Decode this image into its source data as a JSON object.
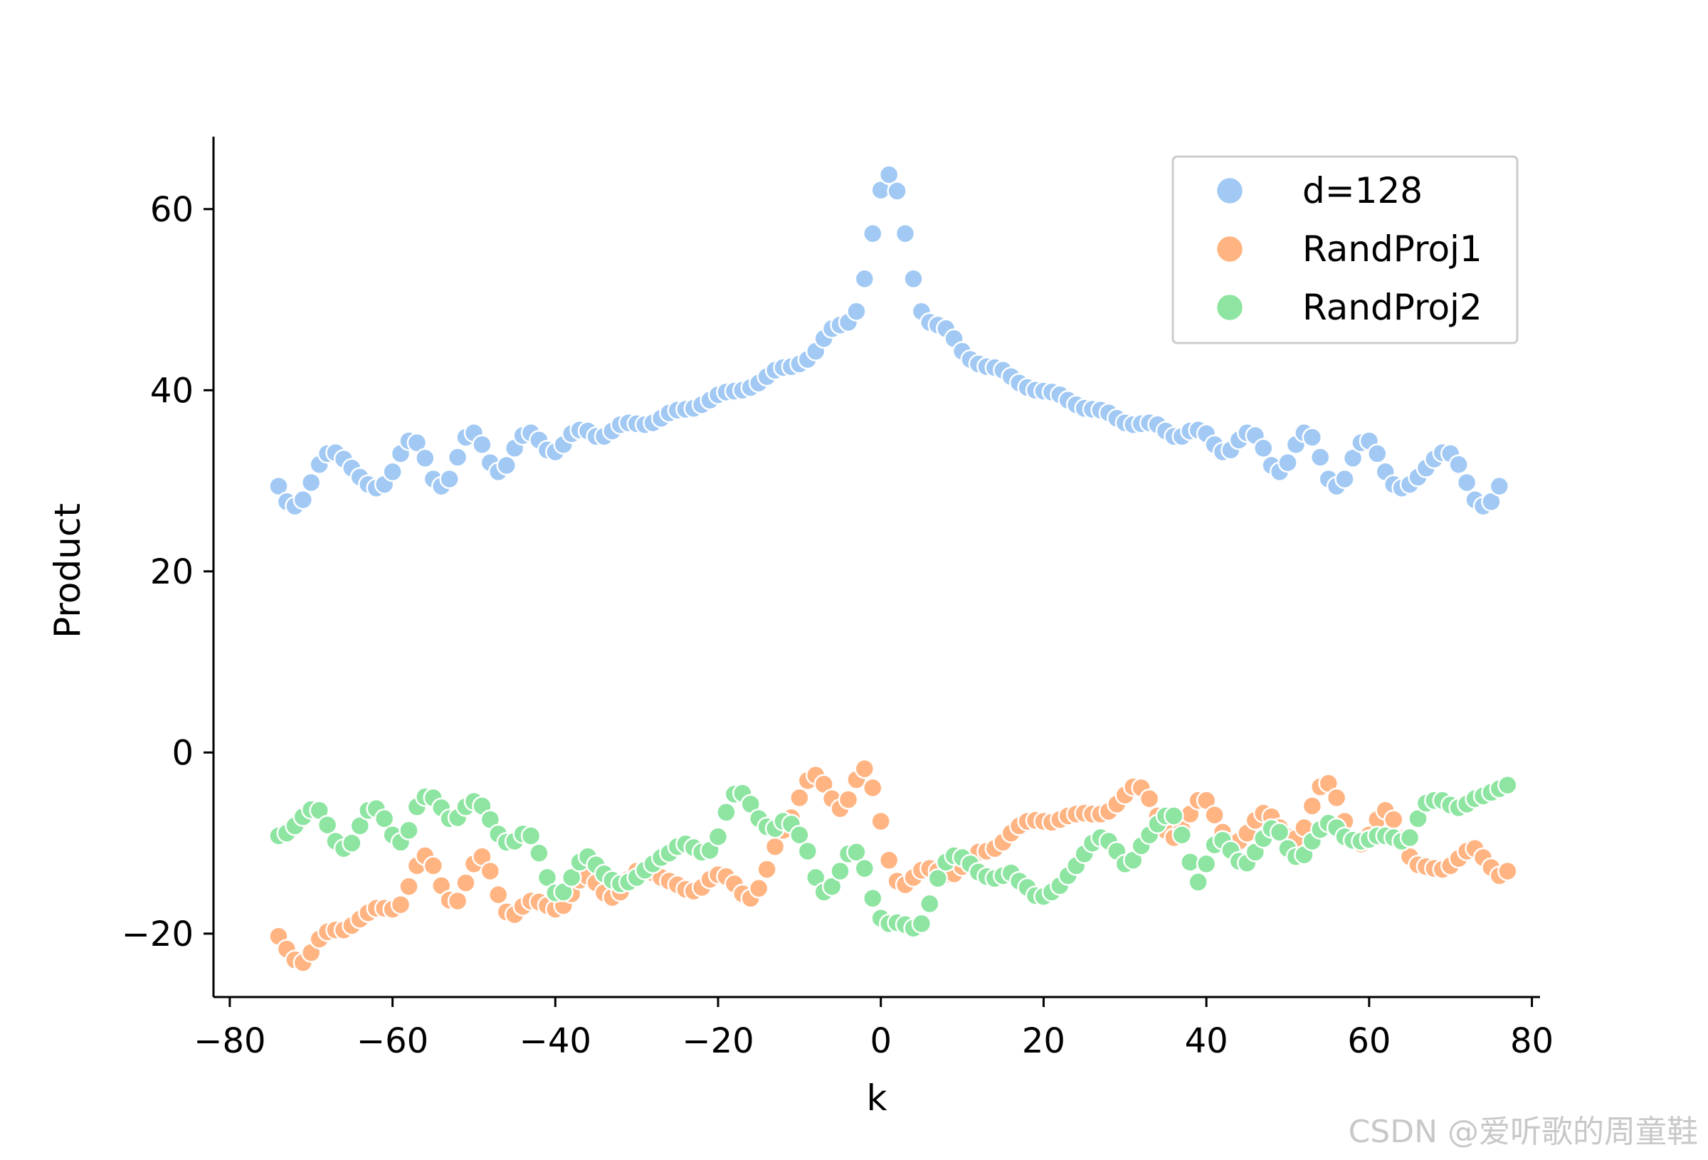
{
  "chart_data": {
    "type": "scatter",
    "title": "",
    "xlabel": "k",
    "ylabel": "Product",
    "xlim": [
      -82,
      81
    ],
    "ylim": [
      -27,
      68
    ],
    "xticks": [
      -80,
      -60,
      -40,
      -20,
      0,
      20,
      40,
      60,
      80
    ],
    "yticks": [
      -20,
      0,
      20,
      40,
      60
    ],
    "xtick_labels": [
      "−80",
      "−60",
      "−40",
      "−20",
      "0",
      "20",
      "40",
      "60",
      "80"
    ],
    "ytick_labels": [
      "−20",
      "0",
      "20",
      "40",
      "60"
    ],
    "grid": false,
    "legend_position": "top-right",
    "k_start": -74,
    "series": [
      {
        "name": "d=128",
        "color": "#a1c9f4",
        "values": [
          29.4,
          27.7,
          27.2,
          27.9,
          29.8,
          31.8,
          33.0,
          33.1,
          32.4,
          31.4,
          30.4,
          29.6,
          29.2,
          29.6,
          31.0,
          33.0,
          34.4,
          34.2,
          32.5,
          30.2,
          29.4,
          30.2,
          32.6,
          34.8,
          35.3,
          34.0,
          32.0,
          31.0,
          31.7,
          33.6,
          35.0,
          35.3,
          34.5,
          33.4,
          33.2,
          34.0,
          35.2,
          35.6,
          35.5,
          34.9,
          34.9,
          35.5,
          36.2,
          36.4,
          36.3,
          36.2,
          36.4,
          36.9,
          37.5,
          37.8,
          37.9,
          38.0,
          38.4,
          38.9,
          39.5,
          39.8,
          39.9,
          40.0,
          40.3,
          40.8,
          41.5,
          42.2,
          42.5,
          42.6,
          42.9,
          43.4,
          44.3,
          45.7,
          46.8,
          47.2,
          47.5,
          48.7,
          52.3,
          57.3,
          62.1,
          63.8,
          62.0,
          57.3,
          52.3,
          48.7,
          47.5,
          47.2,
          46.8,
          45.7,
          44.3,
          43.4,
          42.9,
          42.6,
          42.5,
          42.2,
          41.5,
          40.8,
          40.3,
          40.0,
          39.9,
          39.8,
          39.5,
          38.9,
          38.4,
          38.0,
          37.9,
          37.8,
          37.5,
          36.9,
          36.4,
          36.2,
          36.3,
          36.4,
          36.2,
          35.5,
          34.9,
          34.9,
          35.5,
          35.6,
          35.2,
          34.0,
          33.2,
          33.4,
          34.5,
          35.3,
          35.0,
          33.6,
          31.7,
          31.0,
          32.0,
          34.0,
          35.3,
          34.8,
          32.6,
          30.2,
          29.4,
          30.2,
          32.5,
          34.2,
          34.4,
          33.0,
          31.0,
          29.6,
          29.2,
          29.6,
          30.4,
          31.4,
          32.4,
          33.1,
          33.0,
          31.8,
          29.8,
          27.9,
          27.2,
          27.7,
          29.4
        ]
      },
      {
        "name": "RandProj1",
        "color": "#ffb482",
        "values": [
          -20.3,
          -21.7,
          -22.9,
          -23.2,
          -22.1,
          -20.6,
          -19.8,
          -19.6,
          -19.6,
          -19.1,
          -18.4,
          -17.7,
          -17.2,
          -17.2,
          -17.3,
          -16.8,
          -14.8,
          -12.5,
          -11.4,
          -12.5,
          -14.7,
          -16.3,
          -16.4,
          -14.4,
          -12.3,
          -11.5,
          -13.1,
          -15.7,
          -17.6,
          -17.9,
          -17.0,
          -16.4,
          -16.5,
          -16.9,
          -17.3,
          -16.9,
          -15.6,
          -14.1,
          -13.7,
          -14.4,
          -15.5,
          -16.0,
          -15.4,
          -14.0,
          -13.1,
          -12.9,
          -13.3,
          -13.8,
          -14.2,
          -14.6,
          -15.1,
          -15.3,
          -14.9,
          -14.0,
          -13.5,
          -13.7,
          -14.5,
          -15.6,
          -16.1,
          -15.0,
          -12.9,
          -10.4,
          -8.6,
          -7.2,
          -5.0,
          -3.1,
          -2.5,
          -3.5,
          -5.1,
          -6.2,
          -5.2,
          -3.0,
          -1.8,
          -3.9,
          -7.6,
          -11.9,
          -14.2,
          -14.6,
          -13.8,
          -13.0,
          -12.8,
          -13.1,
          -13.5,
          -13.4,
          -12.6,
          -11.8,
          -11.0,
          -10.9,
          -10.6,
          -9.9,
          -8.9,
          -8.1,
          -7.6,
          -7.5,
          -7.6,
          -7.7,
          -7.4,
          -7.0,
          -6.8,
          -6.7,
          -6.8,
          -6.8,
          -6.5,
          -5.7,
          -4.7,
          -3.8,
          -3.9,
          -5.1,
          -7.0,
          -8.6,
          -9.4,
          -8.5,
          -6.8,
          -5.3,
          -5.3,
          -6.9,
          -8.8,
          -9.9,
          -9.8,
          -8.9,
          -7.5,
          -6.7,
          -7.1,
          -8.3,
          -9.3,
          -9.5,
          -8.3,
          -5.9,
          -3.8,
          -3.4,
          -5.0,
          -7.6,
          -9.6,
          -10.1,
          -9.1,
          -7.4,
          -6.4,
          -7.4,
          -9.5,
          -11.5,
          -12.4,
          -12.6,
          -12.8,
          -12.9,
          -12.5,
          -11.7,
          -10.9,
          -10.6,
          -11.6,
          -12.7,
          -13.6,
          -13.1
        ]
      },
      {
        "name": "RandProj2",
        "color": "#8de5a1",
        "values": [
          -9.2,
          -8.9,
          -8.1,
          -7.1,
          -6.3,
          -6.4,
          -8.0,
          -9.8,
          -10.6,
          -10.0,
          -8.1,
          -6.4,
          -6.2,
          -7.3,
          -9.1,
          -9.9,
          -8.6,
          -6.0,
          -4.9,
          -5.0,
          -6.1,
          -7.3,
          -7.2,
          -6.0,
          -5.4,
          -5.9,
          -7.4,
          -9.0,
          -9.9,
          -9.8,
          -9.0,
          -9.2,
          -11.1,
          -13.8,
          -15.5,
          -15.4,
          -13.8,
          -12.1,
          -11.5,
          -12.4,
          -13.4,
          -14.1,
          -14.5,
          -14.3,
          -13.8,
          -13.0,
          -12.3,
          -11.6,
          -11.1,
          -10.4,
          -10.1,
          -10.5,
          -11.0,
          -10.8,
          -9.3,
          -6.6,
          -4.6,
          -4.5,
          -5.7,
          -7.3,
          -8.2,
          -8.4,
          -7.6,
          -7.9,
          -9.1,
          -10.9,
          -13.8,
          -15.4,
          -14.8,
          -13.1,
          -11.2,
          -11.0,
          -12.8,
          -16.1,
          -18.3,
          -18.9,
          -18.8,
          -19.0,
          -19.4,
          -18.9,
          -16.7,
          -13.9,
          -12.1,
          -11.4,
          -11.6,
          -12.3,
          -13.2,
          -13.7,
          -13.9,
          -13.6,
          -13.3,
          -14.2,
          -14.9,
          -15.8,
          -15.9,
          -15.4,
          -14.7,
          -13.6,
          -12.5,
          -11.2,
          -10.0,
          -9.4,
          -9.8,
          -10.9,
          -12.3,
          -11.9,
          -10.3,
          -9.1,
          -7.9,
          -7.0,
          -7.0,
          -9.1,
          -12.1,
          -14.3,
          -12.3,
          -10.2,
          -9.7,
          -10.8,
          -12.0,
          -12.2,
          -11.0,
          -9.5,
          -8.4,
          -8.8,
          -10.6,
          -11.5,
          -11.3,
          -9.8,
          -8.5,
          -7.8,
          -8.3,
          -9.3,
          -9.7,
          -9.8,
          -9.6,
          -9.2,
          -9.2,
          -9.4,
          -9.8,
          -9.4,
          -7.3,
          -5.6,
          -5.3,
          -5.3,
          -5.8,
          -6.1,
          -5.7,
          -5.1,
          -4.8,
          -4.4,
          -4.0,
          -3.6
        ]
      }
    ]
  },
  "watermark": "CSDN @爱听歌的周童鞋"
}
